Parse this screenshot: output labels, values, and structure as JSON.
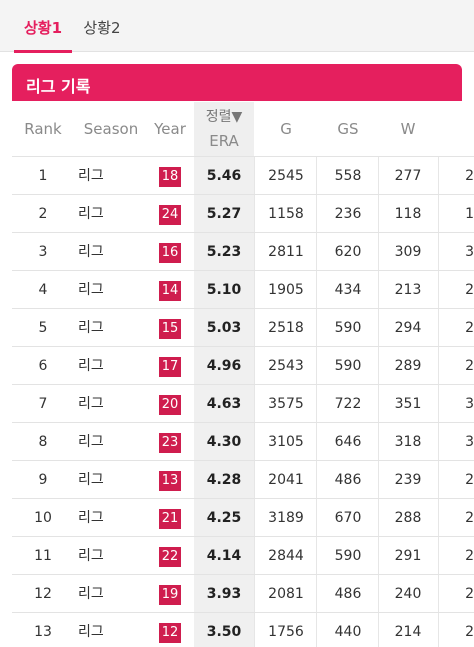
{
  "tabs": [
    {
      "label": "상황1",
      "active": true
    },
    {
      "label": "상황2",
      "active": false
    }
  ],
  "section": {
    "title": "리그 기록"
  },
  "columns": {
    "rank": "Rank",
    "season": "Season",
    "year": "Year",
    "sort_label": "정렬▼",
    "era": "ERA",
    "g": "G",
    "gs": "GS",
    "w": "W"
  },
  "colors": {
    "accent": "#e51f5e",
    "year_badge": "#cf1d4e"
  },
  "rows": [
    {
      "rank": "1",
      "season": "리그",
      "year": "18",
      "era": "5.46",
      "g": "2545",
      "gs": "558",
      "w": "277",
      "extra": "2"
    },
    {
      "rank": "2",
      "season": "리그",
      "year": "24",
      "era": "5.27",
      "g": "1158",
      "gs": "236",
      "w": "118",
      "extra": "1"
    },
    {
      "rank": "3",
      "season": "리그",
      "year": "16",
      "era": "5.23",
      "g": "2811",
      "gs": "620",
      "w": "309",
      "extra": "3"
    },
    {
      "rank": "4",
      "season": "리그",
      "year": "14",
      "era": "5.10",
      "g": "1905",
      "gs": "434",
      "w": "213",
      "extra": "2"
    },
    {
      "rank": "5",
      "season": "리그",
      "year": "15",
      "era": "5.03",
      "g": "2518",
      "gs": "590",
      "w": "294",
      "extra": "2"
    },
    {
      "rank": "6",
      "season": "리그",
      "year": "17",
      "era": "4.96",
      "g": "2543",
      "gs": "590",
      "w": "289",
      "extra": "2"
    },
    {
      "rank": "7",
      "season": "리그",
      "year": "20",
      "era": "4.63",
      "g": "3575",
      "gs": "722",
      "w": "351",
      "extra": "3"
    },
    {
      "rank": "8",
      "season": "리그",
      "year": "23",
      "era": "4.30",
      "g": "3105",
      "gs": "646",
      "w": "318",
      "extra": "3"
    },
    {
      "rank": "9",
      "season": "리그",
      "year": "13",
      "era": "4.28",
      "g": "2041",
      "gs": "486",
      "w": "239",
      "extra": "2"
    },
    {
      "rank": "10",
      "season": "리그",
      "year": "21",
      "era": "4.25",
      "g": "3189",
      "gs": "670",
      "w": "288",
      "extra": "2"
    },
    {
      "rank": "11",
      "season": "리그",
      "year": "22",
      "era": "4.14",
      "g": "2844",
      "gs": "590",
      "w": "291",
      "extra": "2"
    },
    {
      "rank": "12",
      "season": "리그",
      "year": "19",
      "era": "3.93",
      "g": "2081",
      "gs": "486",
      "w": "240",
      "extra": "2"
    },
    {
      "rank": "13",
      "season": "리그",
      "year": "12",
      "era": "3.50",
      "g": "1756",
      "gs": "440",
      "w": "214",
      "extra": "2"
    }
  ]
}
